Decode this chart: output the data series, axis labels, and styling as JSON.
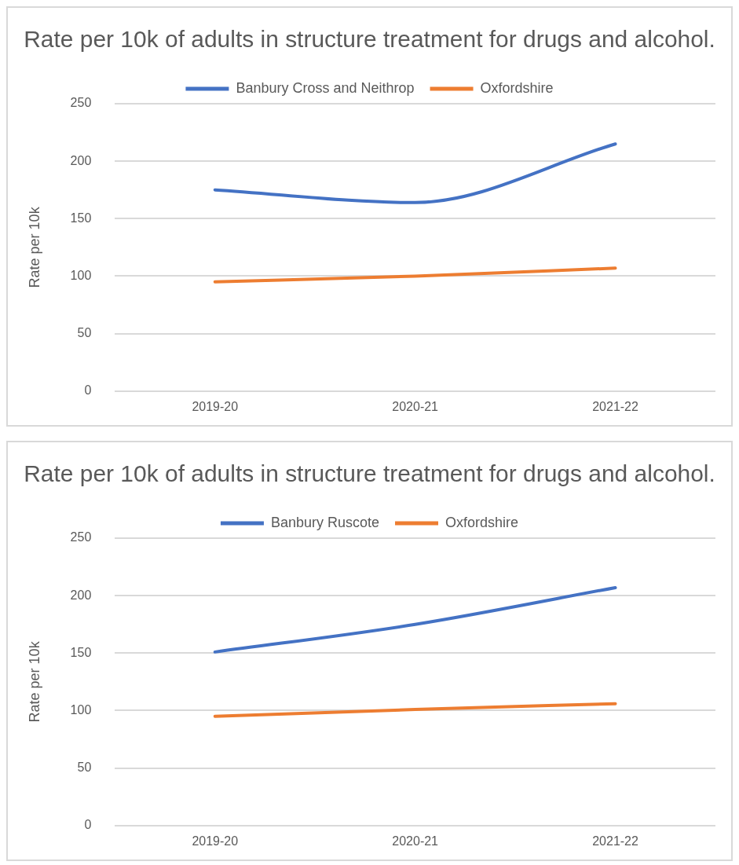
{
  "chart_data": [
    {
      "type": "line",
      "title": "Rate per 10k of adults in structure treatment for drugs and alcohol.",
      "ylabel": "Rate per 10k",
      "categories": [
        "2019-20",
        "2020-21",
        "2021-22"
      ],
      "series": [
        {
          "name": "Banbury Cross and Neithrop",
          "color": "#4472c4",
          "values": [
            175,
            164,
            215
          ]
        },
        {
          "name": "Oxfordshire",
          "color": "#ed7d31",
          "values": [
            95,
            100,
            107
          ]
        }
      ],
      "ylim": [
        0,
        250
      ],
      "yticks": [
        0,
        50,
        100,
        150,
        200,
        250
      ],
      "grid": "y",
      "legend": "top",
      "marker": "none"
    },
    {
      "type": "line",
      "title": "Rate per 10k of adults in structure treatment for drugs and alcohol.",
      "ylabel": "Rate per 10k",
      "categories": [
        "2019-20",
        "2020-21",
        "2021-22"
      ],
      "series": [
        {
          "name": "Banbury Ruscote",
          "color": "#4472c4",
          "values": [
            151,
            175,
            207
          ]
        },
        {
          "name": "Oxfordshire",
          "color": "#ed7d31",
          "values": [
            95,
            101,
            106
          ]
        }
      ],
      "ylim": [
        0,
        250
      ],
      "yticks": [
        0,
        50,
        100,
        150,
        200,
        250
      ],
      "grid": "y",
      "legend": "top",
      "marker": "none"
    }
  ]
}
